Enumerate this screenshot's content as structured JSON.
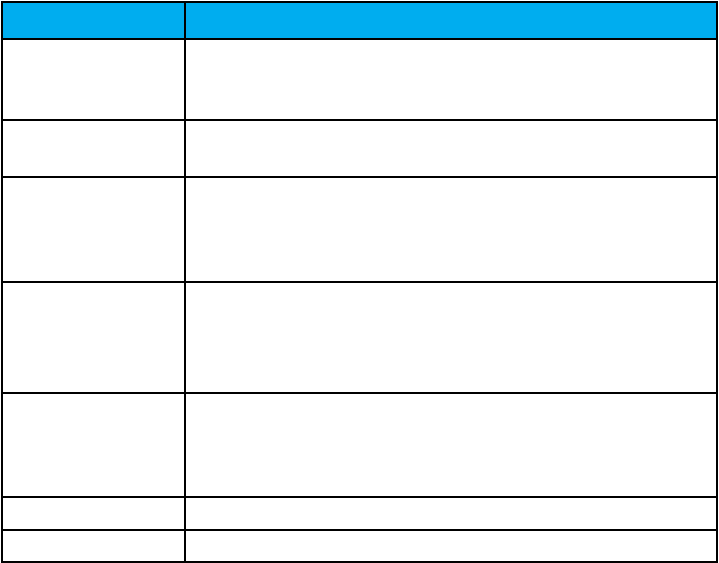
{
  "table": {
    "header_color": "#00ADEF",
    "headers": [
      "",
      ""
    ],
    "rows": [
      [
        "",
        ""
      ],
      [
        "",
        ""
      ],
      [
        "",
        ""
      ],
      [
        "",
        ""
      ],
      [
        "",
        ""
      ],
      [
        "",
        ""
      ],
      [
        "",
        ""
      ]
    ]
  }
}
